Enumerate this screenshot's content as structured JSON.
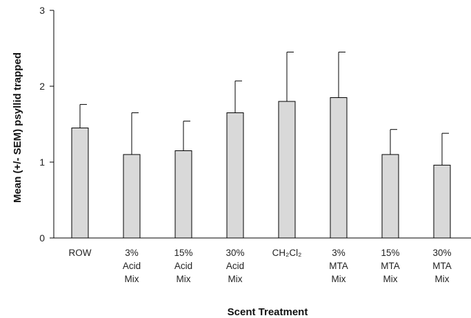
{
  "chart_data": {
    "type": "bar",
    "xlabel": "Scent Treatment",
    "ylabel": "Mean (+/- SEM) psyllid trapped",
    "ylim": [
      0,
      3
    ],
    "yticks": [
      0,
      1,
      2,
      3
    ],
    "grid": false,
    "categories": [
      [
        "ROW"
      ],
      [
        "3%",
        "Acid",
        "Mix"
      ],
      [
        "15%",
        "Acid",
        "Mix"
      ],
      [
        "30%",
        "Acid",
        "Mix"
      ],
      [
        "CH₂Cl₂"
      ],
      [
        "3%",
        "MTA",
        "Mix"
      ],
      [
        "15%",
        "MTA",
        "Mix"
      ],
      [
        "30%",
        "MTA",
        "Mix"
      ]
    ],
    "values": [
      1.45,
      1.1,
      1.15,
      1.65,
      1.8,
      1.85,
      1.1,
      0.96
    ],
    "errors": [
      0.31,
      0.55,
      0.39,
      0.42,
      0.65,
      0.6,
      0.33,
      0.42
    ],
    "bar_color": "#d9d9d9",
    "bar_edge_color": "#000000"
  }
}
